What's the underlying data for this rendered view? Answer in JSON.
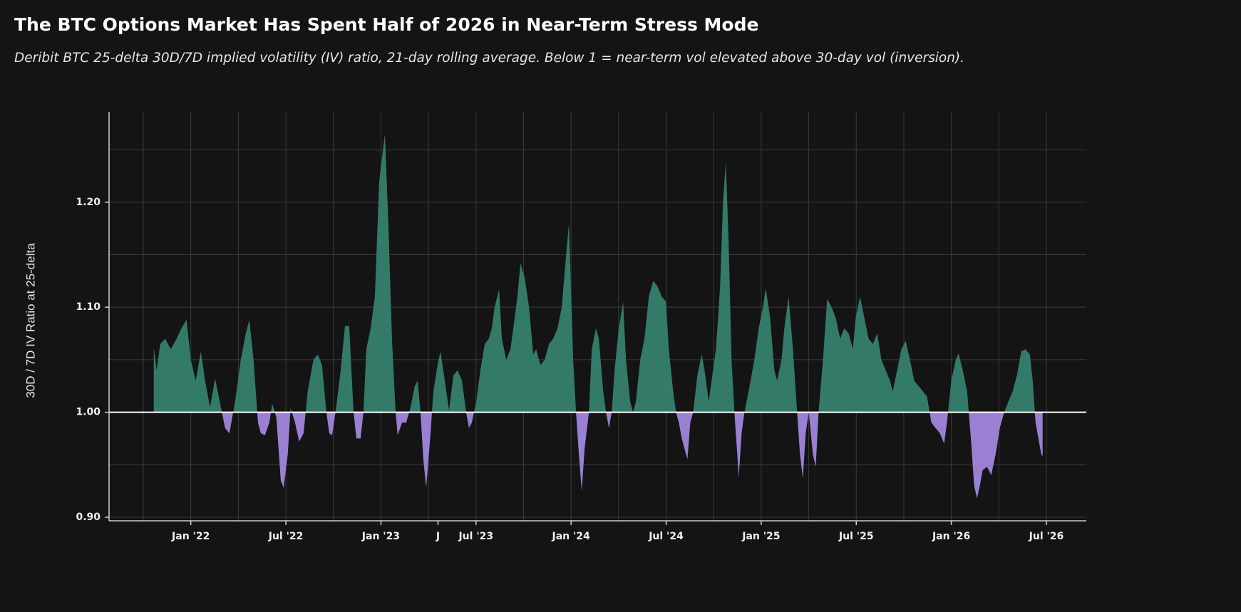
{
  "chart_data": {
    "type": "area",
    "title": "The BTC Options Market Has Spent Half of 2026 in Near-Term Stress Mode",
    "subtitle": "Deribit BTC 25-delta 30D/7D implied volatility (IV) ratio, 21-day rolling average. Below 1 = near-term vol elevated above 30-day vol (inversion).",
    "y_label": "30D / 7D IV Ratio at 25-delta",
    "baseline": 1,
    "color_above": "#347a69",
    "color_below": "#9a80d2",
    "grid": true,
    "xlim": [
      2021.57,
      2026.71
    ],
    "ylim": [
      0.9,
      1.286
    ],
    "xticks": [
      {
        "value": 2022.0,
        "label": "Jan '22"
      },
      {
        "value": 2022.5,
        "label": "Jul '22"
      },
      {
        "value": 2023.0,
        "label": "Jan '23"
      },
      {
        "value": 2023.3,
        "label": "J"
      },
      {
        "value": 2023.5,
        "label": "Jul '23"
      },
      {
        "value": 2024.0,
        "label": "Jan '24"
      },
      {
        "value": 2024.5,
        "label": "Jul '24"
      },
      {
        "value": 2025.0,
        "label": "Jan '25"
      },
      {
        "value": 2025.5,
        "label": "Jul '25"
      },
      {
        "value": 2026.0,
        "label": "Jan '26"
      },
      {
        "value": 2026.5,
        "label": "Jul '26"
      }
    ],
    "x_minor_ticks": [
      2021.75,
      2022,
      2022.25,
      2022.5,
      2022.75,
      2023,
      2023.25,
      2023.5,
      2023.75,
      2024,
      2024.25,
      2024.5,
      2024.75,
      2025,
      2025.25,
      2025.5,
      2025.75,
      2026,
      2026.25,
      2026.5
    ],
    "yticks": [
      {
        "value": 0.9,
        "label": "0.90"
      },
      {
        "value": 1.0,
        "label": "1.00"
      },
      {
        "value": 1.1,
        "label": "1.10"
      },
      {
        "value": 1.2,
        "label": "1.20"
      }
    ],
    "y_minor_ticks": [
      0.95,
      1.05,
      1.15,
      1.25
    ],
    "x": [
      2021.805,
      2021.82,
      2021.839,
      2021.865,
      2021.895,
      2021.925,
      2021.951,
      2021.977,
      2022.0,
      2022.026,
      2022.053,
      2022.075,
      2022.101,
      2022.128,
      2022.158,
      2022.18,
      2022.203,
      2022.233,
      2022.263,
      2022.289,
      2022.308,
      2022.33,
      2022.353,
      2022.368,
      2022.39,
      2022.413,
      2022.428,
      2022.45,
      2022.473,
      2022.488,
      2022.51,
      2022.525,
      2022.548,
      2022.57,
      2022.593,
      2022.615,
      2022.645,
      2022.668,
      2022.69,
      2022.713,
      2022.728,
      2022.743,
      2022.765,
      2022.788,
      2022.811,
      2022.833,
      2022.856,
      2022.871,
      2022.893,
      2022.908,
      2022.923,
      2022.946,
      2022.968,
      2022.991,
      2023.021,
      2023.039,
      2023.058,
      2023.077,
      2023.088,
      2023.111,
      2023.133,
      2023.156,
      2023.178,
      2023.193,
      2023.208,
      2023.223,
      2023.238,
      2023.261,
      2023.276,
      2023.298,
      2023.313,
      2023.336,
      2023.358,
      2023.381,
      2023.403,
      2023.426,
      2023.448,
      2023.463,
      2023.478,
      2023.501,
      2023.523,
      2023.546,
      2023.568,
      2023.583,
      2023.598,
      2023.621,
      2023.636,
      2023.659,
      2023.681,
      2023.696,
      2023.719,
      2023.734,
      2023.756,
      2023.779,
      2023.801,
      2023.816,
      2023.839,
      2023.861,
      2023.884,
      2023.906,
      2023.929,
      2023.951,
      2023.974,
      2023.989,
      2024.011,
      2024.026,
      2024.041,
      2024.056,
      2024.071,
      2024.094,
      2024.109,
      2024.131,
      2024.146,
      2024.169,
      2024.184,
      2024.199,
      2024.214,
      2024.229,
      2024.251,
      2024.274,
      2024.289,
      2024.311,
      2024.326,
      2024.341,
      2024.364,
      2024.386,
      2024.409,
      2024.432,
      2024.454,
      2024.477,
      2024.499,
      2024.514,
      2024.537,
      2024.552,
      2024.567,
      2024.582,
      2024.597,
      2024.612,
      2024.627,
      2024.642,
      2024.664,
      2024.687,
      2024.702,
      2024.724,
      2024.739,
      2024.762,
      2024.784,
      2024.799,
      2024.814,
      2024.829,
      2024.844,
      2024.859,
      2024.874,
      2024.882,
      2024.897,
      2024.912,
      2024.934,
      2024.964,
      2024.987,
      2025.009,
      2025.024,
      2025.047,
      2025.069,
      2025.084,
      2025.107,
      2025.122,
      2025.144,
      2025.167,
      2025.189,
      2025.204,
      2025.219,
      2025.234,
      2025.25,
      2025.272,
      2025.287,
      2025.302,
      2025.325,
      2025.347,
      2025.37,
      2025.392,
      2025.415,
      2025.437,
      2025.46,
      2025.482,
      2025.497,
      2025.52,
      2025.542,
      2025.565,
      2025.587,
      2025.61,
      2025.632,
      2025.655,
      2025.677,
      2025.692,
      2025.715,
      2025.737,
      2025.76,
      2025.782,
      2025.805,
      2025.827,
      2025.85,
      2025.872,
      2025.895,
      2025.917,
      2025.94,
      2025.962,
      2025.977,
      2026.0,
      2026.023,
      2026.038,
      2026.06,
      2026.083,
      2026.105,
      2026.12,
      2026.135,
      2026.15,
      2026.165,
      2026.188,
      2026.21,
      2026.233,
      2026.255,
      2026.278,
      2026.3,
      2026.323,
      2026.345,
      2026.368,
      2026.39,
      2026.413,
      2026.428,
      2026.443,
      2026.458,
      2026.473,
      2026.48
    ],
    "values": [
      1.062,
      1.04,
      1.065,
      1.07,
      1.06,
      1.07,
      1.08,
      1.088,
      1.05,
      1.03,
      1.058,
      1.03,
      1.005,
      1.032,
      1.005,
      0.985,
      0.98,
      1.01,
      1.05,
      1.075,
      1.088,
      1.05,
      0.99,
      0.98,
      0.978,
      0.99,
      1.008,
      0.995,
      0.935,
      0.928,
      0.96,
      1.004,
      0.99,
      0.972,
      0.98,
      1.02,
      1.05,
      1.055,
      1.045,
      1.0,
      0.98,
      0.978,
      1.005,
      1.04,
      1.082,
      1.082,
      1.0,
      0.975,
      0.975,
      1.0,
      1.06,
      1.08,
      1.11,
      1.22,
      1.265,
      1.18,
      1.07,
      1.0,
      0.978,
      0.99,
      0.99,
      1.005,
      1.025,
      1.03,
      1.0,
      0.955,
      0.928,
      0.98,
      1.02,
      1.045,
      1.058,
      1.03,
      1.002,
      1.035,
      1.04,
      1.03,
      1.0,
      0.985,
      0.99,
      1.01,
      1.04,
      1.065,
      1.07,
      1.08,
      1.1,
      1.117,
      1.07,
      1.05,
      1.06,
      1.08,
      1.112,
      1.142,
      1.128,
      1.1,
      1.055,
      1.06,
      1.045,
      1.05,
      1.065,
      1.07,
      1.08,
      1.1,
      1.15,
      1.18,
      1.05,
      1.0,
      0.96,
      0.925,
      0.965,
      1.0,
      1.06,
      1.08,
      1.07,
      1.02,
      1.0,
      0.985,
      1.0,
      1.04,
      1.08,
      1.105,
      1.05,
      1.01,
      1.0,
      1.01,
      1.05,
      1.07,
      1.11,
      1.125,
      1.12,
      1.11,
      1.105,
      1.06,
      1.02,
      1.0,
      0.99,
      0.975,
      0.965,
      0.955,
      0.99,
      1.0,
      1.035,
      1.055,
      1.04,
      1.01,
      1.03,
      1.06,
      1.12,
      1.2,
      1.238,
      1.16,
      1.05,
      1.0,
      0.96,
      0.938,
      0.98,
      1.0,
      1.02,
      1.05,
      1.08,
      1.1,
      1.118,
      1.09,
      1.04,
      1.03,
      1.05,
      1.08,
      1.11,
      1.06,
      1.0,
      0.96,
      0.937,
      0.98,
      1.0,
      0.96,
      0.948,
      1.0,
      1.05,
      1.108,
      1.1,
      1.09,
      1.07,
      1.08,
      1.075,
      1.06,
      1.09,
      1.11,
      1.09,
      1.07,
      1.065,
      1.075,
      1.05,
      1.04,
      1.03,
      1.02,
      1.04,
      1.06,
      1.068,
      1.05,
      1.03,
      1.025,
      1.02,
      1.015,
      0.99,
      0.985,
      0.98,
      0.97,
      0.99,
      1.03,
      1.05,
      1.056,
      1.04,
      1.02,
      0.97,
      0.93,
      0.918,
      0.93,
      0.945,
      0.948,
      0.94,
      0.96,
      0.985,
      1.0,
      1.01,
      1.02,
      1.035,
      1.058,
      1.06,
      1.055,
      1.03,
      0.99,
      0.975,
      0.96,
      0.958
    ]
  }
}
